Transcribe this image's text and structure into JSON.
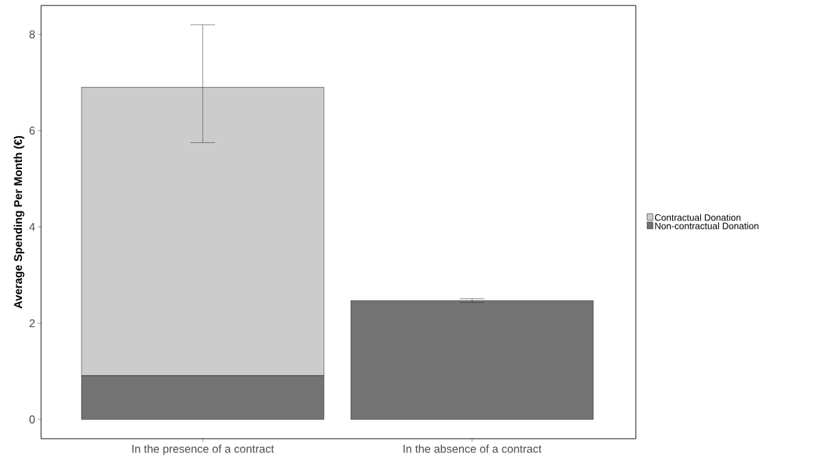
{
  "chart_data": {
    "type": "bar",
    "stacked": true,
    "ylabel": "Average Spending Per Month (€)",
    "categories": [
      "In the presence of a contract",
      "In the absence of a contract"
    ],
    "series": [
      {
        "name": "Non-contractual Donation",
        "color": "#737373",
        "values": [
          0.91,
          2.47
        ],
        "errors": [
          null,
          [
            2.43,
            2.51
          ]
        ]
      },
      {
        "name": "Contractual Donation",
        "color": "#cccccc",
        "values": [
          5.99,
          null
        ],
        "errors": [
          [
            5.75,
            8.2
          ],
          null
        ]
      }
    ],
    "ylim": [
      -0.4,
      8.6
    ],
    "yticks": [
      0,
      2,
      4,
      6,
      8
    ],
    "grid": false,
    "legend": "right"
  }
}
